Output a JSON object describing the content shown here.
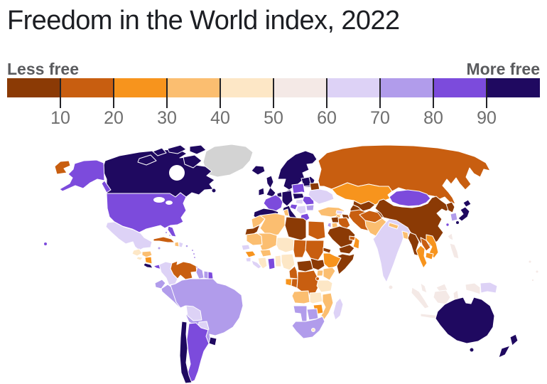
{
  "title": "Freedom in the World index, 2022",
  "legend": {
    "left_label": "Less free",
    "right_label": "More free",
    "tick_labels": [
      "10",
      "20",
      "30",
      "40",
      "50",
      "60",
      "70",
      "80",
      "90"
    ],
    "no_data_color": "#D3D3D3",
    "bands": [
      {
        "range": "0-10",
        "color": "#8B3A05"
      },
      {
        "range": "10-20",
        "color": "#C85E10"
      },
      {
        "range": "20-30",
        "color": "#F7941D"
      },
      {
        "range": "30-40",
        "color": "#FBBE70"
      },
      {
        "range": "40-50",
        "color": "#FDE7C6"
      },
      {
        "range": "50-60",
        "color": "#F4E9E6"
      },
      {
        "range": "60-70",
        "color": "#DDD2F6"
      },
      {
        "range": "70-80",
        "color": "#B19CEB"
      },
      {
        "range": "80-90",
        "color": "#7C4BDC"
      },
      {
        "range": "90-100",
        "color": "#1F0960"
      }
    ]
  },
  "chart_data": {
    "type": "choropleth_map",
    "title": "Freedom in the World index, 2022",
    "scale": {
      "ticks": [
        10,
        20,
        30,
        40,
        50,
        60,
        70,
        80,
        90
      ],
      "low_label": "Less free",
      "high_label": "More free"
    },
    "regions": {
      "greenland": {
        "name": "Greenland",
        "band": "no_data"
      },
      "canada": {
        "name": "Canada",
        "band": 9
      },
      "alaska": {
        "name": "Alaska (United States)",
        "band": 8
      },
      "usa": {
        "name": "United States",
        "band": 8
      },
      "hawaii": {
        "name": "Hawaii (United States)",
        "band": 8
      },
      "mexico": {
        "name": "Mexico",
        "band": 6
      },
      "guatemala": {
        "name": "Guatemala",
        "band": 4
      },
      "honduras": {
        "name": "Honduras",
        "band": 3
      },
      "el-salvador": {
        "name": "El Salvador",
        "band": 4
      },
      "nicaragua": {
        "name": "Nicaragua",
        "band": 2
      },
      "costa-rica": {
        "name": "Costa Rica",
        "band": 9
      },
      "panama": {
        "name": "Panama",
        "band": 8
      },
      "cuba": {
        "name": "Cuba",
        "band": 1
      },
      "bahamas": {
        "name": "Bahamas",
        "band": 7
      },
      "jamaica": {
        "name": "Jamaica",
        "band": 7
      },
      "haiti": {
        "name": "Haiti",
        "band": 3
      },
      "dominican-republic": {
        "name": "Dominican Republic",
        "band": 6
      },
      "puerto-rico": {
        "name": "Puerto Rico",
        "band": 7
      },
      "lesser-antilles": {
        "name": "Lesser Antilles",
        "band": 8
      },
      "trinidad": {
        "name": "Trinidad and Tobago",
        "band": 8
      },
      "colombia": {
        "name": "Colombia",
        "band": 6
      },
      "venezuela": {
        "name": "Venezuela",
        "band": 1
      },
      "guyana": {
        "name": "Guyana",
        "band": 7
      },
      "suriname": {
        "name": "Suriname",
        "band": 7
      },
      "french-guiana": {
        "name": "French Guiana (France)",
        "band": 8
      },
      "ecuador": {
        "name": "Ecuador",
        "band": 7
      },
      "peru": {
        "name": "Peru",
        "band": 7
      },
      "brazil": {
        "name": "Brazil",
        "band": 7
      },
      "bolivia": {
        "name": "Bolivia",
        "band": 6
      },
      "paraguay": {
        "name": "Paraguay",
        "band": 6
      },
      "chile": {
        "name": "Chile",
        "band": 9
      },
      "argentina": {
        "name": "Argentina",
        "band": 8
      },
      "uruguay": {
        "name": "Uruguay",
        "band": 9
      },
      "iceland": {
        "name": "Iceland",
        "band": 9
      },
      "ireland": {
        "name": "Ireland",
        "band": 9
      },
      "united-kingdom": {
        "name": "United Kingdom",
        "band": 9
      },
      "scandinavia": {
        "name": "Norway, Sweden, Finland",
        "band": 9
      },
      "denmark": {
        "name": "Denmark",
        "band": 9
      },
      "baltics": {
        "name": "Baltic states",
        "band": 9
      },
      "benelux": {
        "name": "Benelux",
        "band": 9
      },
      "central-europe": {
        "name": "Germany, Austria, Czechia, Slovakia, Switzerland",
        "band": 9
      },
      "poland": {
        "name": "Poland",
        "band": 8
      },
      "france": {
        "name": "France",
        "band": 8
      },
      "iberia": {
        "name": "Spain and Portugal",
        "band": 9
      },
      "italy": {
        "name": "Italy",
        "band": 9
      },
      "hungary": {
        "name": "Hungary",
        "band": 6
      },
      "slovenia-croatia": {
        "name": "Slovenia and Croatia",
        "band": 8
      },
      "balkans": {
        "name": "Western Balkans",
        "band": 6
      },
      "greece": {
        "name": "Greece",
        "band": 8
      },
      "romania": {
        "name": "Romania",
        "band": 8
      },
      "bulgaria": {
        "name": "Bulgaria",
        "band": 7
      },
      "belarus": {
        "name": "Belarus",
        "band": 0
      },
      "ukraine": {
        "name": "Ukraine",
        "band": 6
      },
      "russia": {
        "name": "Russia",
        "band": 1
      },
      "turkey": {
        "name": "Turkey",
        "band": 3
      },
      "georgia": {
        "name": "Georgia",
        "band": 6
      },
      "azerbaijan": {
        "name": "Azerbaijan",
        "band": 0
      },
      "armenia": {
        "name": "Armenia",
        "band": 3
      },
      "syria": {
        "name": "Syria",
        "band": 0
      },
      "israel": {
        "name": "Israel",
        "band": 7
      },
      "jordan": {
        "name": "Jordan",
        "band": 3
      },
      "iraq": {
        "name": "Iraq",
        "band": 1
      },
      "iran": {
        "name": "Iran",
        "band": 1
      },
      "saudi-arabia": {
        "name": "Saudi Arabia",
        "band": 0
      },
      "yemen": {
        "name": "Yemen",
        "band": 0
      },
      "oman": {
        "name": "Oman",
        "band": 2
      },
      "uae": {
        "name": "United Arab Emirates",
        "band": 1
      },
      "egypt": {
        "name": "Egypt",
        "band": 1
      },
      "kazakhstan": {
        "name": "Kazakhstan",
        "band": 2
      },
      "uzbekistan": {
        "name": "Uzbekistan",
        "band": 0
      },
      "turkmenistan": {
        "name": "Turkmenistan",
        "band": 0
      },
      "kyrgyzstan": {
        "name": "Kyrgyzstan",
        "band": 2
      },
      "tajikistan": {
        "name": "Tajikistan",
        "band": 0
      },
      "afghanistan": {
        "name": "Afghanistan",
        "band": 1
      },
      "pakistan": {
        "name": "Pakistan",
        "band": 3
      },
      "india": {
        "name": "India",
        "band": 6
      },
      "nepal": {
        "name": "Nepal",
        "band": 3
      },
      "bangladesh": {
        "name": "Bangladesh",
        "band": 3
      },
      "sri-lanka": {
        "name": "Sri Lanka",
        "band": 5
      },
      "myanmar": {
        "name": "Myanmar",
        "band": 0
      },
      "thailand": {
        "name": "Thailand",
        "band": 2
      },
      "laos": {
        "name": "Laos",
        "band": 1
      },
      "vietnam": {
        "name": "Vietnam",
        "band": 2
      },
      "cambodia": {
        "name": "Cambodia",
        "band": 2
      },
      "china": {
        "name": "China",
        "band": 0
      },
      "mongolia": {
        "name": "Mongolia",
        "band": 8
      },
      "north-korea": {
        "name": "North Korea",
        "band": 0
      },
      "south-korea": {
        "name": "South Korea",
        "band": 7
      },
      "japan": {
        "name": "Japan",
        "band": 9
      },
      "taiwan": {
        "name": "Taiwan",
        "band": 8
      },
      "philippines": {
        "name": "Philippines",
        "band": 5
      },
      "malaysia": {
        "name": "Malaysia",
        "band": 5
      },
      "indonesia": {
        "name": "Indonesia",
        "band": 5
      },
      "timor-leste": {
        "name": "Timor-Leste",
        "band": 7
      },
      "papua-new-guinea": {
        "name": "Papua New Guinea",
        "band": 6
      },
      "australia": {
        "name": "Australia",
        "band": 9
      },
      "new-zealand": {
        "name": "New Zealand",
        "band": 9
      },
      "pacific-islands": {
        "name": "Pacific islands",
        "band": 5
      },
      "morocco": {
        "name": "Morocco",
        "band": 3
      },
      "western-sahara": {
        "name": "Western Sahara",
        "band": 0
      },
      "algeria": {
        "name": "Algeria",
        "band": 3
      },
      "tunisia": {
        "name": "Tunisia",
        "band": 3
      },
      "libya": {
        "name": "Libya",
        "band": 0
      },
      "mauritania": {
        "name": "Mauritania",
        "band": 3
      },
      "mali": {
        "name": "Mali",
        "band": 3
      },
      "senegal": {
        "name": "Senegal",
        "band": 6
      },
      "guinea": {
        "name": "Guinea",
        "band": 2
      },
      "sierra-leone": {
        "name": "Sierra Leone",
        "band": 6
      },
      "liberia": {
        "name": "Liberia",
        "band": 6
      },
      "ivory-coast": {
        "name": "Cote d'Ivoire",
        "band": 4
      },
      "burkina-faso": {
        "name": "Burkina Faso",
        "band": 3
      },
      "ghana": {
        "name": "Ghana",
        "band": 8
      },
      "togo-benin": {
        "name": "Togo and Benin",
        "band": 4
      },
      "niger": {
        "name": "Niger",
        "band": 4
      },
      "nigeria": {
        "name": "Nigeria",
        "band": 4
      },
      "chad": {
        "name": "Chad",
        "band": 1
      },
      "sudan": {
        "name": "Sudan",
        "band": 1
      },
      "eritrea": {
        "name": "Eritrea",
        "band": 0
      },
      "ethiopia": {
        "name": "Ethiopia",
        "band": 2
      },
      "somalia": {
        "name": "Somalia",
        "band": 0
      },
      "cameroon": {
        "name": "Cameroon",
        "band": 1
      },
      "central-african-republic": {
        "name": "Central African Republic",
        "band": 0
      },
      "south-sudan": {
        "name": "South Sudan",
        "band": 0
      },
      "gabon": {
        "name": "Gabon",
        "band": 2
      },
      "congo": {
        "name": "Republic of the Congo",
        "band": 1
      },
      "drc": {
        "name": "Democratic Republic of the Congo",
        "band": 1
      },
      "uganda": {
        "name": "Uganda",
        "band": 3
      },
      "kenya": {
        "name": "Kenya",
        "band": 3
      },
      "rwanda-burundi": {
        "name": "Rwanda and Burundi",
        "band": 1
      },
      "tanzania": {
        "name": "Tanzania",
        "band": 4
      },
      "angola": {
        "name": "Angola",
        "band": 3
      },
      "zambia": {
        "name": "Zambia",
        "band": 4
      },
      "mozambique": {
        "name": "Mozambique",
        "band": 3
      },
      "zimbabwe": {
        "name": "Zimbabwe",
        "band": 2
      },
      "botswana": {
        "name": "Botswana",
        "band": 7
      },
      "namibia": {
        "name": "Namibia",
        "band": 7
      },
      "south-africa": {
        "name": "South Africa",
        "band": 7
      },
      "lesotho": {
        "name": "Lesotho",
        "band": 4
      },
      "madagascar": {
        "name": "Madagascar",
        "band": 6
      }
    }
  }
}
